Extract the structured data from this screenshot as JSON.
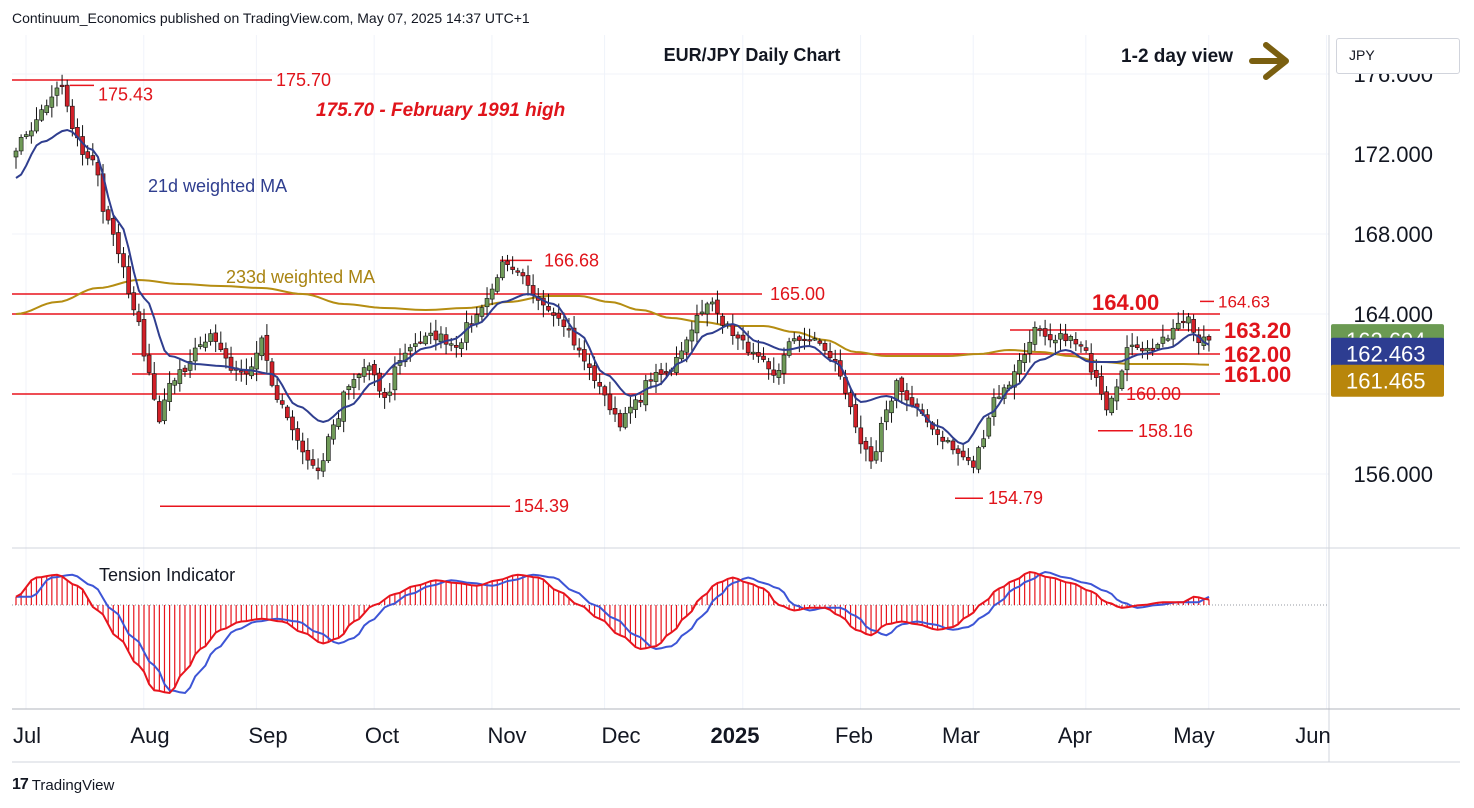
{
  "header": {
    "publisher_line": "Continuum_Economics published on TradingView.com, May 07, 2025 14:37 UTC+1"
  },
  "footer": {
    "brand": "TradingView"
  },
  "currency_selector": {
    "value": "JPY"
  },
  "colors": {
    "candle_up": "#6f9a58",
    "candle_down": "#d12028",
    "ma21": "#2f3e8f",
    "ma233": "#b58d12",
    "level_line": "#e8141d",
    "annotation_text": "#e0141b",
    "arrow": "#7a5f10",
    "tension_line_red": "#e8141d",
    "tension_line_blue": "#3d55d6",
    "badge_last": "#6b9a52",
    "badge_ma21": "#2d3d91",
    "badge_ma233": "#b8860b"
  },
  "chart_data": {
    "type": "candlestick",
    "title": "EUR/JPY Daily Chart",
    "view_label": "1-2 day view",
    "indicator_label": "Tension Indicator",
    "y_axis": {
      "ticks": [
        {
          "value": 156,
          "label": "156.000"
        },
        {
          "value": 164,
          "label": "164.000"
        },
        {
          "value": 168,
          "label": "168.000"
        },
        {
          "value": 172,
          "label": "172.000"
        },
        {
          "value": 176,
          "label": "176.000"
        }
      ],
      "ylim": [
        152.4,
        177
      ]
    },
    "x_axis": {
      "labels": [
        {
          "label": "Jul",
          "bold": false
        },
        {
          "label": "Aug",
          "bold": false
        },
        {
          "label": "Sep",
          "bold": false
        },
        {
          "label": "Oct",
          "bold": false
        },
        {
          "label": "Nov",
          "bold": false
        },
        {
          "label": "Dec",
          "bold": false
        },
        {
          "label": "2025",
          "bold": true
        },
        {
          "label": "Feb",
          "bold": false
        },
        {
          "label": "Mar",
          "bold": false
        },
        {
          "label": "Apr",
          "bold": false
        },
        {
          "label": "May",
          "bold": false
        },
        {
          "label": "Jun",
          "bold": false
        }
      ]
    },
    "series": [
      {
        "name": "21d weighted MA"
      },
      {
        "name": "233d weighted MA"
      }
    ],
    "price_badges": [
      {
        "label": "162.694",
        "value": 162.694,
        "color_key": "badge_last"
      },
      {
        "label": "162.463",
        "value": 162.463,
        "color_key": "badge_ma21"
      },
      {
        "label": "161.465",
        "value": 161.465,
        "color_key": "badge_ma233"
      }
    ],
    "levels": [
      {
        "label": "175.70",
        "value": 175.7,
        "bold": false
      },
      {
        "label": "165.00",
        "value": 165.0,
        "bold": false
      },
      {
        "label": "164.00",
        "value": 164.0,
        "bold": true
      },
      {
        "label": "163.20",
        "value": 163.2,
        "bold": true
      },
      {
        "label": "162.00",
        "value": 162.0,
        "bold": true
      },
      {
        "label": "161.00",
        "value": 161.0,
        "bold": true
      },
      {
        "label": "160.00",
        "value": 160.0,
        "bold": false
      },
      {
        "label": "154.39",
        "value": 154.39,
        "bold": false
      },
      {
        "label": "154.79",
        "value": 154.79,
        "bold": false
      },
      {
        "label": "158.16",
        "value": 158.16,
        "bold": false
      },
      {
        "label": "166.68",
        "value": 166.68,
        "bold": false
      },
      {
        "label": "164.63",
        "value": 164.63,
        "bold": false
      },
      {
        "label": "175.43",
        "value": 175.43,
        "bold": false
      }
    ],
    "annotations": [
      {
        "text": "175.70 - February 1991 high"
      }
    ],
    "anchors": [
      [
        0,
        172.4
      ],
      [
        3,
        173.3
      ],
      [
        6,
        174.5
      ],
      [
        9,
        175.4
      ],
      [
        11,
        173.2
      ],
      [
        13,
        172.1
      ],
      [
        15,
        171.6
      ],
      [
        18,
        168.6
      ],
      [
        21,
        166.2
      ],
      [
        23,
        164.2
      ],
      [
        26,
        161.0
      ],
      [
        28,
        158.4
      ],
      [
        30,
        160.6
      ],
      [
        33,
        161.2
      ],
      [
        35,
        162.4
      ],
      [
        38,
        162.8
      ],
      [
        42,
        161.4
      ],
      [
        45,
        161.0
      ],
      [
        48,
        162.6
      ],
      [
        51,
        159.8
      ],
      [
        54,
        158.2
      ],
      [
        57,
        156.8
      ],
      [
        59,
        156.2
      ],
      [
        62,
        158.4
      ],
      [
        65,
        160.4
      ],
      [
        69,
        161.4
      ],
      [
        72,
        159.6
      ],
      [
        75,
        161.8
      ],
      [
        78,
        162.6
      ],
      [
        82,
        162.9
      ],
      [
        86,
        162.5
      ],
      [
        89,
        163.6
      ],
      [
        92,
        164.8
      ],
      [
        95,
        166.4
      ],
      [
        98,
        165.9
      ],
      [
        101,
        165.1
      ],
      [
        104,
        164.4
      ],
      [
        107,
        163.5
      ],
      [
        110,
        162.1
      ],
      [
        113,
        160.8
      ],
      [
        116,
        159.4
      ],
      [
        118,
        158.6
      ],
      [
        121,
        159.5
      ],
      [
        124,
        160.8
      ],
      [
        127,
        161.0
      ],
      [
        130,
        162.3
      ],
      [
        133,
        163.8
      ],
      [
        136,
        164.6
      ],
      [
        139,
        163.3
      ],
      [
        142,
        162.5
      ],
      [
        145,
        161.7
      ],
      [
        148,
        160.8
      ],
      [
        151,
        162.5
      ],
      [
        154,
        162.8
      ],
      [
        157,
        162.5
      ],
      [
        160,
        161.5
      ],
      [
        163,
        159.4
      ],
      [
        165,
        157.6
      ],
      [
        167,
        156.4
      ],
      [
        170,
        159.0
      ],
      [
        172,
        160.6
      ],
      [
        175,
        159.4
      ],
      [
        178,
        158.6
      ],
      [
        181,
        157.8
      ],
      [
        184,
        157.0
      ],
      [
        187,
        156.4
      ],
      [
        189,
        158.0
      ],
      [
        191,
        159.8
      ],
      [
        193,
        160.2
      ],
      [
        196,
        161.6
      ],
      [
        199,
        163.2
      ],
      [
        202,
        162.5
      ],
      [
        205,
        162.9
      ],
      [
        208,
        162.3
      ],
      [
        211,
        161.0
      ],
      [
        213,
        159.4
      ],
      [
        215,
        160.6
      ],
      [
        218,
        162.6
      ],
      [
        221,
        162.2
      ],
      [
        224,
        162.6
      ],
      [
        227,
        163.4
      ],
      [
        229,
        163.9
      ],
      [
        231,
        162.7
      ],
      [
        233,
        162.694
      ]
    ],
    "ma21_anchors": [
      [
        0,
        170.8
      ],
      [
        5,
        172.6
      ],
      [
        10,
        173.2
      ],
      [
        15,
        172.2
      ],
      [
        20,
        168.6
      ],
      [
        25,
        164.8
      ],
      [
        30,
        161.9
      ],
      [
        35,
        161.5
      ],
      [
        40,
        161.4
      ],
      [
        45,
        161.2
      ],
      [
        50,
        161.0
      ],
      [
        55,
        159.4
      ],
      [
        60,
        158.6
      ],
      [
        65,
        159.4
      ],
      [
        70,
        160.6
      ],
      [
        75,
        161.6
      ],
      [
        80,
        162.3
      ],
      [
        85,
        162.7
      ],
      [
        90,
        163.5
      ],
      [
        95,
        164.6
      ],
      [
        100,
        165.0
      ],
      [
        105,
        164.5
      ],
      [
        110,
        163.0
      ],
      [
        115,
        161.0
      ],
      [
        120,
        159.9
      ],
      [
        125,
        160.4
      ],
      [
        130,
        161.6
      ],
      [
        135,
        163.0
      ],
      [
        140,
        163.5
      ],
      [
        145,
        162.6
      ],
      [
        150,
        162.2
      ],
      [
        155,
        162.4
      ],
      [
        160,
        161.6
      ],
      [
        165,
        159.6
      ],
      [
        170,
        159.9
      ],
      [
        175,
        159.4
      ],
      [
        180,
        158.4
      ],
      [
        185,
        157.5
      ],
      [
        190,
        159.0
      ],
      [
        195,
        160.4
      ],
      [
        200,
        161.7
      ],
      [
        205,
        162.2
      ],
      [
        210,
        161.6
      ],
      [
        215,
        161.6
      ],
      [
        220,
        162.0
      ],
      [
        225,
        162.3
      ],
      [
        230,
        163.0
      ],
      [
        233,
        162.463
      ]
    ],
    "ma233_anchors": [
      [
        0,
        164.0
      ],
      [
        8,
        164.6
      ],
      [
        16,
        165.3
      ],
      [
        24,
        165.7
      ],
      [
        32,
        165.5
      ],
      [
        40,
        165.4
      ],
      [
        48,
        165.3
      ],
      [
        56,
        165.0
      ],
      [
        64,
        164.5
      ],
      [
        72,
        164.3
      ],
      [
        80,
        164.2
      ],
      [
        88,
        164.3
      ],
      [
        96,
        164.6
      ],
      [
        104,
        164.9
      ],
      [
        110,
        164.9
      ],
      [
        116,
        164.6
      ],
      [
        122,
        164.2
      ],
      [
        128,
        163.8
      ],
      [
        134,
        163.6
      ],
      [
        140,
        163.4
      ],
      [
        146,
        163.4
      ],
      [
        152,
        163.1
      ],
      [
        158,
        162.7
      ],
      [
        164,
        162.1
      ],
      [
        170,
        161.9
      ],
      [
        176,
        161.9
      ],
      [
        182,
        161.9
      ],
      [
        188,
        162.0
      ],
      [
        194,
        162.2
      ],
      [
        200,
        162.1
      ],
      [
        206,
        161.9
      ],
      [
        212,
        161.6
      ],
      [
        218,
        161.5
      ],
      [
        224,
        161.5
      ],
      [
        228,
        161.5
      ],
      [
        233,
        161.465
      ]
    ],
    "tension_anchors": [
      [
        0,
        0.15
      ],
      [
        4,
        0.5
      ],
      [
        8,
        0.55
      ],
      [
        12,
        0.35
      ],
      [
        16,
        -0.1
      ],
      [
        20,
        -0.6
      ],
      [
        24,
        -1.1
      ],
      [
        27,
        -1.55
      ],
      [
        30,
        -1.6
      ],
      [
        33,
        -1.2
      ],
      [
        36,
        -0.8
      ],
      [
        40,
        -0.45
      ],
      [
        44,
        -0.3
      ],
      [
        48,
        -0.25
      ],
      [
        52,
        -0.3
      ],
      [
        56,
        -0.5
      ],
      [
        60,
        -0.7
      ],
      [
        63,
        -0.6
      ],
      [
        66,
        -0.3
      ],
      [
        70,
        0.0
      ],
      [
        74,
        0.2
      ],
      [
        78,
        0.35
      ],
      [
        82,
        0.45
      ],
      [
        86,
        0.4
      ],
      [
        90,
        0.35
      ],
      [
        94,
        0.45
      ],
      [
        98,
        0.55
      ],
      [
        102,
        0.5
      ],
      [
        106,
        0.25
      ],
      [
        110,
        0.0
      ],
      [
        114,
        -0.25
      ],
      [
        118,
        -0.55
      ],
      [
        122,
        -0.8
      ],
      [
        125,
        -0.75
      ],
      [
        128,
        -0.5
      ],
      [
        131,
        -0.2
      ],
      [
        134,
        0.15
      ],
      [
        137,
        0.4
      ],
      [
        140,
        0.5
      ],
      [
        143,
        0.4
      ],
      [
        146,
        0.3
      ],
      [
        149,
        0.0
      ],
      [
        152,
        -0.1
      ],
      [
        155,
        -0.05
      ],
      [
        158,
        -0.05
      ],
      [
        161,
        -0.2
      ],
      [
        164,
        -0.45
      ],
      [
        167,
        -0.55
      ],
      [
        170,
        -0.35
      ],
      [
        173,
        -0.3
      ],
      [
        176,
        -0.35
      ],
      [
        180,
        -0.45
      ],
      [
        183,
        -0.4
      ],
      [
        186,
        -0.2
      ],
      [
        189,
        0.05
      ],
      [
        192,
        0.3
      ],
      [
        195,
        0.45
      ],
      [
        198,
        0.6
      ],
      [
        202,
        0.5
      ],
      [
        206,
        0.4
      ],
      [
        210,
        0.25
      ],
      [
        213,
        0.05
      ],
      [
        216,
        -0.05
      ],
      [
        220,
        0.0
      ],
      [
        224,
        0.05
      ],
      [
        228,
        0.05
      ],
      [
        230,
        0.15
      ],
      [
        233,
        0.1
      ]
    ]
  }
}
